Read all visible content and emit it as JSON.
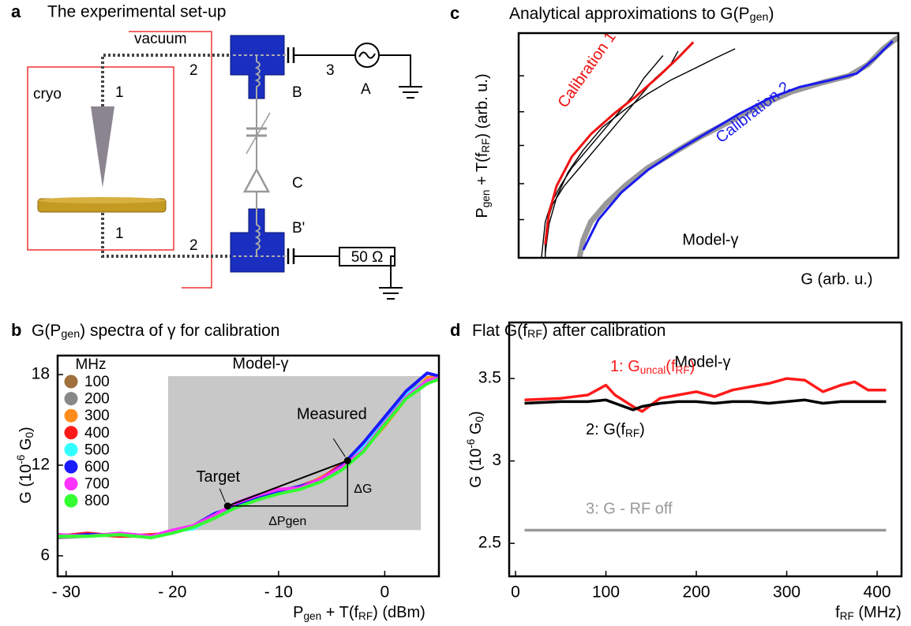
{
  "diagram": {
    "label": "a",
    "title": "The experimental set-up",
    "vacuum": "vacuum",
    "cryo": "cryo",
    "ports": [
      "1",
      "2",
      "3",
      "1",
      "2"
    ],
    "source": "A",
    "bias_tee_top": "B",
    "component": "C",
    "bias_tee_bottom": "B'",
    "load": "50 Ω"
  },
  "chart_data": [
    {
      "type": "line",
      "panel_label": "b",
      "title": [
        "G(P",
        {
          "sub": "gen"
        },
        ") spectra of γ for calibration"
      ],
      "xlabel": [
        "P",
        {
          "sub": "gen"
        },
        " + T(f",
        {
          "sub": "RF"
        },
        ") (dBm)"
      ],
      "ylabel": [
        "G (10",
        {
          "sup": "-6"
        },
        " G",
        {
          "sub": "0"
        },
        ")"
      ],
      "annotation": "Model-γ",
      "legend_title": "MHz",
      "legend": "left",
      "xlim": [
        -30.8,
        5.1
      ],
      "ylim": [
        4.64,
        19.26
      ],
      "xticks": [
        {
          "value": -30,
          "label": "- 30"
        },
        {
          "value": -20,
          "label": "- 20"
        },
        {
          "value": -10,
          "label": "- 10"
        },
        0
      ],
      "yticks": [
        6,
        12,
        18
      ],
      "shaded_region": {
        "x": [
          -20.4,
          3.4
        ],
        "y": [
          7.7,
          17.9
        ],
        "color": "#c8c8c8"
      },
      "target": {
        "label": "Target",
        "point": [
          -14.8,
          9.3
        ]
      },
      "measured": {
        "label": "Measured",
        "point": [
          -3.5,
          12.3
        ]
      },
      "delta_labels": [
        "ΔG",
        "ΔPgen"
      ],
      "x": [
        -30.8,
        -28,
        -25,
        -22,
        -20,
        -18,
        -16,
        -14,
        -12,
        -10,
        -8,
        -6,
        -4,
        -2,
        0,
        2,
        4,
        5.1
      ],
      "series": [
        {
          "name": "100",
          "color": "#a0703c",
          "values": [
            7.3,
            7.4,
            7.3,
            7.3,
            7.6,
            8.0,
            8.7,
            9.4,
            9.9,
            10.3,
            10.6,
            11.1,
            12.0,
            13.3,
            15.0,
            16.8,
            17.6,
            17.9
          ]
        },
        {
          "name": "200",
          "color": "#888888",
          "values": [
            7.2,
            7.3,
            7.4,
            7.2,
            7.5,
            7.9,
            8.6,
            9.2,
            9.7,
            10.2,
            10.5,
            11.0,
            11.8,
            13.1,
            14.9,
            16.6,
            17.5,
            17.8
          ]
        },
        {
          "name": "300",
          "color": "#ff8c1a",
          "values": [
            7.4,
            7.3,
            7.4,
            7.3,
            7.6,
            8.0,
            8.7,
            9.4,
            9.9,
            10.4,
            10.4,
            11.2,
            11.9,
            13.0,
            14.6,
            16.4,
            17.8,
            17.9
          ]
        },
        {
          "name": "400",
          "color": "#ff1a1a",
          "values": [
            7.3,
            7.5,
            7.3,
            7.4,
            7.5,
            7.9,
            8.5,
            9.3,
            9.8,
            10.1,
            10.6,
            11.1,
            12.1,
            13.0,
            14.8,
            16.6,
            17.6,
            17.7
          ]
        },
        {
          "name": "500",
          "color": "#33ffff",
          "values": [
            7.3,
            7.3,
            7.4,
            7.3,
            7.6,
            7.8,
            8.6,
            9.3,
            9.9,
            10.2,
            10.4,
            11.0,
            11.9,
            13.2,
            14.9,
            16.7,
            17.6,
            17.8
          ]
        },
        {
          "name": "600",
          "color": "#1a1aff",
          "values": [
            7.3,
            7.4,
            7.4,
            7.3,
            7.5,
            8.0,
            8.8,
            9.3,
            9.8,
            10.3,
            10.6,
            11.0,
            12.0,
            13.5,
            15.2,
            16.9,
            18.1,
            17.9
          ]
        },
        {
          "name": "700",
          "color": "#ff33ff",
          "values": [
            7.4,
            7.3,
            7.5,
            7.3,
            7.7,
            8.0,
            8.7,
            9.5,
            10.0,
            10.4,
            10.5,
            11.1,
            11.9,
            13.0,
            14.8,
            16.5,
            17.6,
            17.8
          ]
        },
        {
          "name": "800",
          "color": "#33ff33",
          "values": [
            7.3,
            7.3,
            7.4,
            7.2,
            7.5,
            7.9,
            8.5,
            9.2,
            9.7,
            10.1,
            10.4,
            10.9,
            11.7,
            12.9,
            14.7,
            16.4,
            17.4,
            17.7
          ]
        }
      ]
    },
    {
      "type": "line",
      "panel_label": "c",
      "title": [
        "Analytical approximations to G(P",
        {
          "sub": "gen"
        },
        ")"
      ],
      "xlabel": "G (arb. u.)",
      "ylabel": [
        "P",
        {
          "sub": "gen"
        },
        " + T(f",
        {
          "sub": "RF"
        },
        ") (arb. u.)"
      ],
      "annotation": "Model-γ",
      "xlim": [
        0,
        1
      ],
      "ylim": [
        0,
        1
      ],
      "yticks": [
        {
          "value": 0.17,
          "label": null
        },
        {
          "value": 0.33,
          "label": null
        },
        {
          "value": 0.5,
          "label": null
        },
        {
          "value": 0.65,
          "label": null
        },
        {
          "value": 0.81,
          "label": null
        }
      ],
      "series": [
        {
          "color": "#000000",
          "x": [
            0.06,
            0.065,
            0.07,
            0.085,
            0.11,
            0.14,
            0.18,
            0.22,
            0.26,
            0.3,
            0.33,
            0.36,
            0.38
          ],
          "values": [
            0,
            0.08,
            0.16,
            0.24,
            0.32,
            0.4,
            0.48,
            0.56,
            0.64,
            0.72,
            0.8,
            0.86,
            0.9
          ]
        },
        {
          "color": "#000000",
          "x": [
            0.07,
            0.07,
            0.075,
            0.09,
            0.12,
            0.16,
            0.2,
            0.24,
            0.28,
            0.32,
            0.36,
            0.4,
            0.42
          ],
          "values": [
            0,
            0.08,
            0.16,
            0.24,
            0.32,
            0.4,
            0.48,
            0.56,
            0.64,
            0.72,
            0.8,
            0.86,
            0.92
          ]
        },
        {
          "color": "#000000",
          "x": [
            0.07,
            0.08,
            0.1,
            0.13,
            0.17,
            0.22,
            0.28,
            0.34,
            0.4,
            0.46,
            0.52,
            0.57
          ],
          "values": [
            0.02,
            0.15,
            0.27,
            0.38,
            0.48,
            0.58,
            0.66,
            0.73,
            0.79,
            0.84,
            0.89,
            0.93
          ]
        },
        {
          "color": "#999999",
          "x": [
            0.16,
            0.17,
            0.19,
            0.23,
            0.28,
            0.34,
            0.41,
            0.48,
            0.56,
            0.64,
            0.72,
            0.8,
            0.87,
            0.92,
            0.96,
            0.99,
            1.0
          ],
          "values": [
            0.0,
            0.08,
            0.16,
            0.24,
            0.32,
            0.4,
            0.47,
            0.54,
            0.61,
            0.68,
            0.74,
            0.78,
            0.81,
            0.86,
            0.93,
            0.97,
            0.98
          ]
        },
        {
          "name": "Calibration 1",
          "color": "#ee1111",
          "x": [
            0.07,
            0.08,
            0.1,
            0.14,
            0.19,
            0.25,
            0.31,
            0.37,
            0.42,
            0.46
          ],
          "values": [
            0.06,
            0.2,
            0.32,
            0.45,
            0.55,
            0.64,
            0.72,
            0.81,
            0.89,
            0.96
          ]
        },
        {
          "name": "Calibration 2",
          "color": "#1a1aee",
          "x": [
            0.17,
            0.21,
            0.27,
            0.34,
            0.42,
            0.5,
            0.58,
            0.66,
            0.74,
            0.82,
            0.89,
            0.94,
            0.985
          ],
          "values": [
            0.035,
            0.17,
            0.29,
            0.39,
            0.48,
            0.56,
            0.64,
            0.71,
            0.76,
            0.79,
            0.82,
            0.89,
            0.965
          ]
        }
      ]
    },
    {
      "type": "line",
      "panel_label": "d",
      "title": [
        "Flat G(f",
        {
          "sub": "RF"
        },
        ") after calibration"
      ],
      "xlabel": [
        "f",
        {
          "sub": "RF"
        },
        " (MHz)"
      ],
      "ylabel": [
        "G (10",
        {
          "sup": "-6"
        },
        " G",
        {
          "sub": "0"
        },
        ")"
      ],
      "annotation": "Model-γ",
      "xlim": [
        -7,
        427
      ],
      "ylim": [
        2.3,
        3.84
      ],
      "xticks": [
        0,
        100,
        200,
        300,
        400
      ],
      "yticks": [
        2.5,
        3,
        3.5
      ],
      "x": [
        10,
        50,
        80,
        100,
        110,
        130,
        140,
        160,
        180,
        200,
        220,
        240,
        260,
        280,
        300,
        320,
        340,
        360,
        375,
        390,
        410
      ],
      "series": [
        {
          "name": [
            "1: G",
            {
              "sub": "uncal"
            },
            "(f",
            {
              "sub": "RF"
            },
            ")"
          ],
          "color": "#ff1a1a",
          "values": [
            3.37,
            3.38,
            3.4,
            3.46,
            3.4,
            3.33,
            3.3,
            3.38,
            3.4,
            3.42,
            3.39,
            3.43,
            3.45,
            3.47,
            3.5,
            3.49,
            3.42,
            3.46,
            3.48,
            3.43,
            3.43
          ]
        },
        {
          "name": [
            "2: G(f",
            {
              "sub": "RF"
            },
            ")"
          ],
          "color": "#000000",
          "values": [
            3.35,
            3.36,
            3.36,
            3.37,
            3.35,
            3.31,
            3.33,
            3.35,
            3.36,
            3.36,
            3.35,
            3.36,
            3.36,
            3.35,
            3.36,
            3.37,
            3.35,
            3.36,
            3.36,
            3.36,
            3.36
          ]
        },
        {
          "name": "3: G - RF off",
          "color": "#999999",
          "values": [
            2.58,
            2.58,
            2.58,
            2.58,
            2.58,
            2.58,
            2.58,
            2.58,
            2.58,
            2.58,
            2.58,
            2.58,
            2.58,
            2.58,
            2.58,
            2.58,
            2.58,
            2.58,
            2.58,
            2.58,
            2.58
          ]
        }
      ]
    }
  ]
}
